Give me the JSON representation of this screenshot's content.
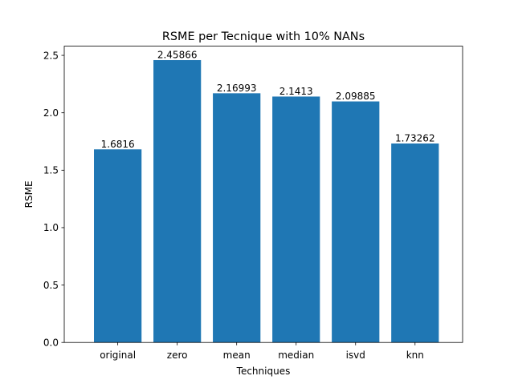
{
  "chart_data": {
    "type": "bar",
    "title": "RSME per Tecnique with 10% NANs",
    "xlabel": "Techniques",
    "ylabel": "RSME",
    "categories": [
      "original",
      "zero",
      "mean",
      "median",
      "isvd",
      "knn"
    ],
    "values": [
      1.6816,
      2.45866,
      2.16993,
      2.1413,
      2.09885,
      1.73262
    ],
    "value_labels": [
      "1.6816",
      "2.45866",
      "2.16993",
      "2.1413",
      "2.09885",
      "1.73262"
    ],
    "ylim": [
      0,
      2.58
    ],
    "yticks": [
      0.0,
      0.5,
      1.0,
      1.5,
      2.0,
      2.5
    ],
    "ytick_labels": [
      "0.0",
      "0.5",
      "1.0",
      "1.5",
      "2.0",
      "2.5"
    ],
    "grid": false,
    "legend": "none",
    "bar_color": "#1f77b4"
  }
}
